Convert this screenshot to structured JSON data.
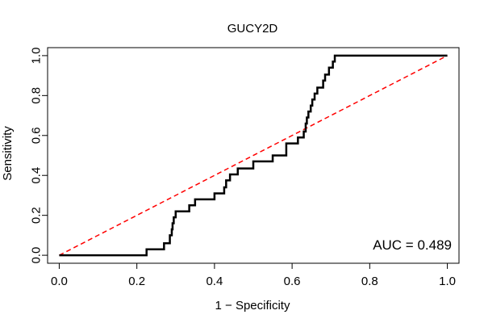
{
  "chart_data": {
    "type": "line",
    "title": "GUCY2D",
    "xlabel": "1 − Specificity",
    "ylabel": "Sensitivity",
    "xlim": [
      -0.03,
      1.03
    ],
    "ylim": [
      -0.04,
      1.04
    ],
    "x_ticks": [
      0.0,
      0.2,
      0.4,
      0.6,
      0.8,
      1.0
    ],
    "x_tick_labels": [
      "0.0",
      "0.2",
      "0.4",
      "0.6",
      "0.8",
      "1.0"
    ],
    "y_ticks": [
      0.0,
      0.2,
      0.4,
      0.6,
      0.8,
      1.0
    ],
    "y_tick_labels": [
      "0.0",
      "0.2",
      "0.4",
      "0.6",
      "0.8",
      "1.0"
    ],
    "annotation": "AUC = 0.489",
    "reference_line": {
      "name": "chance",
      "color": "#ff0000",
      "style": "dashed",
      "x": [
        0,
        1
      ],
      "y": [
        0,
        1
      ]
    },
    "series": [
      {
        "name": "ROC",
        "color": "#000000",
        "x": [
          0.0,
          0.225,
          0.225,
          0.27,
          0.27,
          0.285,
          0.285,
          0.29,
          0.29,
          0.292,
          0.292,
          0.295,
          0.295,
          0.3,
          0.3,
          0.335,
          0.335,
          0.35,
          0.35,
          0.4,
          0.4,
          0.425,
          0.425,
          0.43,
          0.43,
          0.44,
          0.44,
          0.46,
          0.46,
          0.5,
          0.5,
          0.55,
          0.55,
          0.585,
          0.585,
          0.615,
          0.615,
          0.63,
          0.63,
          0.635,
          0.635,
          0.638,
          0.638,
          0.642,
          0.642,
          0.648,
          0.648,
          0.652,
          0.652,
          0.658,
          0.658,
          0.665,
          0.665,
          0.68,
          0.68,
          0.685,
          0.685,
          0.695,
          0.695,
          0.705,
          0.705,
          0.71,
          0.71,
          1.0
        ],
        "y": [
          0.0,
          0.0,
          0.03,
          0.03,
          0.06,
          0.06,
          0.1,
          0.1,
          0.13,
          0.13,
          0.16,
          0.16,
          0.19,
          0.19,
          0.22,
          0.22,
          0.25,
          0.25,
          0.28,
          0.28,
          0.31,
          0.31,
          0.34,
          0.34,
          0.375,
          0.375,
          0.405,
          0.405,
          0.435,
          0.435,
          0.47,
          0.47,
          0.5,
          0.5,
          0.56,
          0.56,
          0.59,
          0.59,
          0.62,
          0.62,
          0.66,
          0.66,
          0.69,
          0.69,
          0.72,
          0.72,
          0.75,
          0.75,
          0.78,
          0.78,
          0.81,
          0.81,
          0.84,
          0.84,
          0.875,
          0.875,
          0.905,
          0.905,
          0.94,
          0.94,
          0.97,
          0.97,
          1.0,
          1.0
        ]
      }
    ]
  }
}
